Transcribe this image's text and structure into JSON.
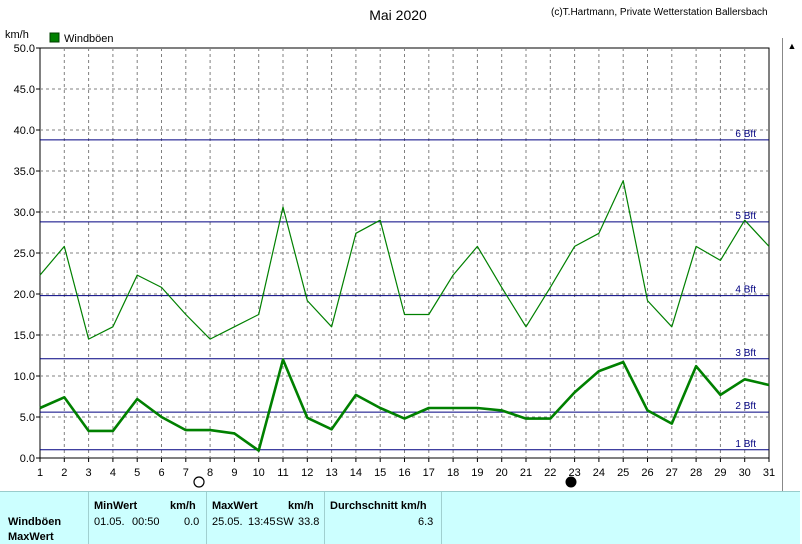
{
  "title": "Mai 2020",
  "copyright": "(c)T.Hartmann, Private Wetterstation Ballersbach",
  "unit": "km/h",
  "legend": "Windböen",
  "colors": {
    "series": "#008000",
    "legend_box": "#008000",
    "beaufort": "#000080",
    "grid": "#808080"
  },
  "chart_data": {
    "type": "line",
    "title": "Mai 2020",
    "ylabel": "km/h",
    "xlabel": "",
    "ylim": [
      0,
      50
    ],
    "yticks": [
      "0.0",
      "5.0",
      "10.0",
      "15.0",
      "20.0",
      "25.0",
      "30.0",
      "35.0",
      "40.0",
      "45.0",
      "50.0"
    ],
    "x": [
      "1",
      "2",
      "3",
      "4",
      "5",
      "6",
      "7",
      "8",
      "9",
      "10",
      "11",
      "12",
      "13",
      "14",
      "15",
      "16",
      "17",
      "18",
      "19",
      "20",
      "21",
      "22",
      "23",
      "24",
      "25",
      "26",
      "27",
      "28",
      "29",
      "30",
      "31"
    ],
    "grid": true,
    "legend_position": "top-left",
    "series": [
      {
        "name": "Windböen",
        "style": "thin",
        "values": [
          22.3,
          25.8,
          14.5,
          16.0,
          22.3,
          20.8,
          17.5,
          14.5,
          16.0,
          17.5,
          30.6,
          19.2,
          16.0,
          27.4,
          29.0,
          17.5,
          17.5,
          22.3,
          25.8,
          20.8,
          16.0,
          20.8,
          25.8,
          27.4,
          33.8,
          19.2,
          16.0,
          25.8,
          24.1,
          29.0,
          25.8
        ]
      },
      {
        "values": [
          6.1,
          7.4,
          3.3,
          3.3,
          7.2,
          5.0,
          3.4,
          3.4,
          3.0,
          0.9,
          12.0,
          4.9,
          3.5,
          7.7,
          6.1,
          4.8,
          6.1,
          6.1,
          6.1,
          5.8,
          4.8,
          4.8,
          8.0,
          10.6,
          11.7,
          5.8,
          4.2,
          11.2,
          7.7,
          9.6,
          8.9
        ]
      }
    ],
    "beaufort_lines": [
      {
        "label": "1 Bft",
        "value": 1.0
      },
      {
        "label": "2 Bft",
        "value": 5.6
      },
      {
        "label": "3 Bft",
        "value": 12.1
      },
      {
        "label": "4 Bft",
        "value": 19.8
      },
      {
        "label": "5 Bft",
        "value": 28.8
      },
      {
        "label": "6 Bft",
        "value": 38.8
      }
    ]
  },
  "stats": {
    "row_label_1": "Windböen",
    "row_label_2": "MaxWert",
    "min_header": "MinWert",
    "min_unit": "km/h",
    "min_date": "01.05.",
    "min_time": "00:50",
    "min_value": "0.0",
    "max_header": "MaxWert",
    "max_unit": "km/h",
    "max_date": "25.05.",
    "max_time": "13:45",
    "max_dir": "SW",
    "max_value": "33.8",
    "avg_header": "Durchschnitt km/h",
    "avg_value": "6.3"
  }
}
